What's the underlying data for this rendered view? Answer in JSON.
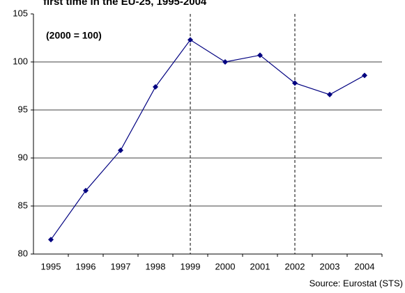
{
  "chart_data": {
    "type": "line",
    "title": "first time in the EU-25, 1995-2004",
    "annotation": "(2000 = 100)",
    "source": "Source: Eurostat (STS)",
    "categories": [
      "1995",
      "1996",
      "1997",
      "1998",
      "1999",
      "2000",
      "2001",
      "2002",
      "2003",
      "2004"
    ],
    "values": [
      81.5,
      86.6,
      90.8,
      97.4,
      102.3,
      100.0,
      100.7,
      97.8,
      96.6,
      98.6
    ],
    "color": "#000080",
    "ylim": [
      80,
      105
    ],
    "yticks": [
      80,
      85,
      90,
      95,
      100,
      105
    ],
    "grid": true,
    "vlines": [
      "1999",
      "2002"
    ]
  }
}
